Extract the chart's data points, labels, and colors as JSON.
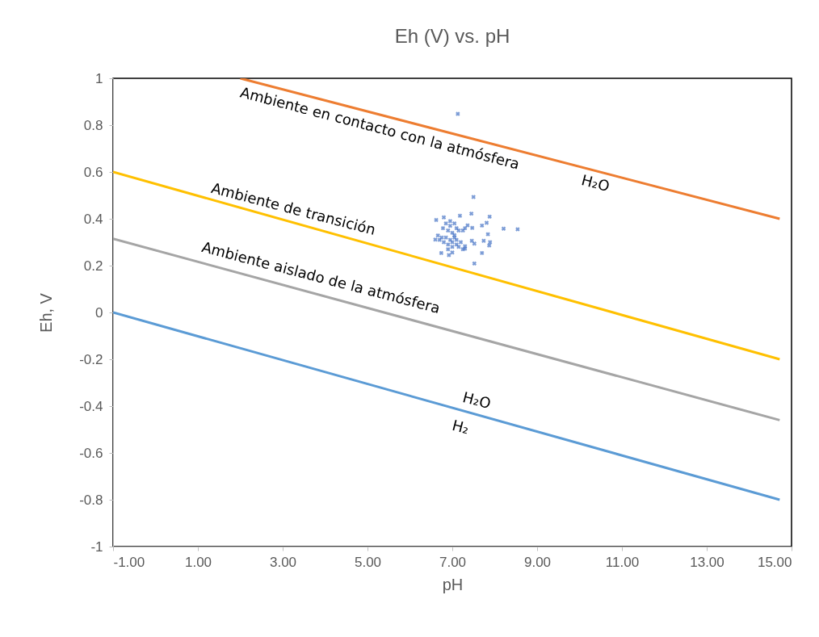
{
  "chart_data": {
    "type": "scatter",
    "title": "Eh (V) vs. pH",
    "xlabel": "pH",
    "ylabel": "Eh, V",
    "xlim": [
      -1,
      15
    ],
    "xticks": [
      {
        "value": -1,
        "label": "-1.00"
      },
      {
        "value": 1,
        "label": "1.00"
      },
      {
        "value": 3,
        "label": "3.00"
      },
      {
        "value": 5,
        "label": "5.00"
      },
      {
        "value": 7,
        "label": "7.00"
      },
      {
        "value": 9,
        "label": "9.00"
      },
      {
        "value": 11,
        "label": "11.00"
      },
      {
        "value": 13,
        "label": "13.00"
      },
      {
        "value": 15,
        "label": "15.00"
      }
    ],
    "ylim": [
      -1,
      1
    ],
    "yticks": [
      -1,
      -0.8,
      -0.6,
      -0.4,
      -0.2,
      0,
      0.2,
      0.4,
      0.6,
      0.8,
      1
    ],
    "grid": false,
    "marker": "cross",
    "series": [
      {
        "type": "line",
        "marker": "none",
        "color": "#ed7d31",
        "x": [
          2,
          14.72
        ],
        "values": [
          1,
          0.4
        ]
      },
      {
        "type": "line",
        "marker": "none",
        "color": "#ffc000",
        "x": [
          -1,
          14.72
        ],
        "values": [
          0.6,
          -0.2
        ]
      },
      {
        "type": "line",
        "marker": "none",
        "color": "#a5a5a5",
        "x": [
          -1,
          14.72
        ],
        "values": [
          0.315,
          -0.46
        ]
      },
      {
        "type": "line",
        "marker": "none",
        "color": "#5b9bd5",
        "x": [
          -1,
          14.72
        ],
        "values": [
          0,
          -0.8
        ]
      },
      {
        "color": "#4472c4",
        "x": [
          7.13,
          7.5,
          6.62,
          6.8,
          7.18,
          7.45,
          7.88,
          7.81,
          7.7,
          8.21,
          8.54,
          7.84,
          7.47,
          7.36,
          6.6,
          6.66,
          7.3,
          7.46,
          7.52,
          7.74,
          7.89,
          7.87,
          7.7,
          7.52,
          6.74,
          6.92,
          7.0,
          7.3,
          6.78,
          6.85,
          6.95,
          7.05,
          7.1,
          6.9,
          7.0,
          7.15,
          7.25,
          7.3,
          6.95,
          7.05,
          6.7,
          6.8,
          6.85,
          6.9,
          6.95,
          7.0,
          7.05,
          7.1,
          6.9,
          7.0,
          7.1,
          7.2,
          7.15,
          6.75,
          7.25
        ],
        "values": [
          0.848,
          0.493,
          0.395,
          0.406,
          0.413,
          0.422,
          0.409,
          0.383,
          0.371,
          0.358,
          0.355,
          0.334,
          0.361,
          0.372,
          0.311,
          0.329,
          0.283,
          0.306,
          0.294,
          0.306,
          0.3,
          0.286,
          0.254,
          0.209,
          0.254,
          0.245,
          0.256,
          0.272,
          0.36,
          0.38,
          0.37,
          0.38,
          0.36,
          0.35,
          0.34,
          0.35,
          0.35,
          0.36,
          0.39,
          0.33,
          0.31,
          0.3,
          0.32,
          0.29,
          0.31,
          0.3,
          0.32,
          0.29,
          0.27,
          0.28,
          0.31,
          0.3,
          0.28,
          0.32,
          0.27
        ]
      }
    ],
    "annotations": [
      "Ambiente en contacto con la atmósfera",
      "H₂O",
      "Ambiente de transición",
      "Ambiente aislado de la atmósfera",
      "H₂O",
      "H₂"
    ]
  }
}
